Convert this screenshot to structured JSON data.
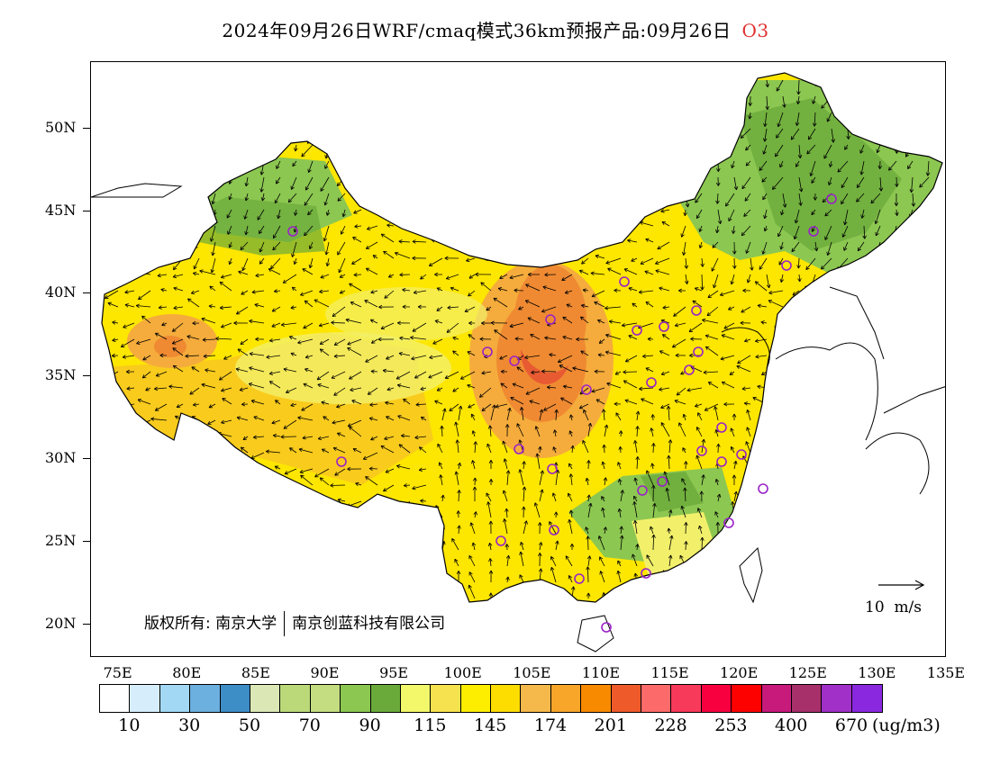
{
  "title": {
    "text": "2024年09月26日WRF/cmaq模式36km预报产品:09月26日",
    "species": "O3"
  },
  "map": {
    "lat_labels": [
      "50N",
      "45N",
      "40N",
      "35N",
      "30N",
      "25N",
      "20N"
    ],
    "lat_values": [
      50,
      45,
      40,
      35,
      30,
      25,
      20
    ],
    "lon_labels": [
      "75E",
      "80E",
      "85E",
      "90E",
      "95E",
      "100E",
      "105E",
      "110E",
      "115E",
      "120E",
      "125E",
      "130E",
      "135E"
    ],
    "lon_values": [
      75,
      80,
      85,
      90,
      95,
      100,
      105,
      110,
      115,
      120,
      125,
      130,
      135
    ],
    "extent": {
      "lon_min": 73,
      "lon_max": 135,
      "lat_min": 18,
      "lat_max": 54
    },
    "copyright": {
      "part1": "版权所有: 南京大学",
      "part2": "南京创蓝科技有限公司"
    },
    "wind_legend": "10  m/s",
    "fill_colors": {
      "green_dark": "#6aaa3a",
      "green_mid": "#8cc751",
      "green_light": "#bcd97a",
      "yellow_light": "#f2f06a",
      "yellow": "#fde600",
      "yellow_orange": "#f8c820",
      "orange_light": "#f5ac3c",
      "orange": "#ef8a32",
      "red_orange": "#e85a32"
    },
    "station_color": "#9a22c8"
  },
  "colorbar": {
    "colors": [
      "#ffffff",
      "#d6eefb",
      "#a3d8f4",
      "#6bb0df",
      "#3d8dc7",
      "#dbe8b6",
      "#bcd97a",
      "#c3dd80",
      "#8cc751",
      "#6aaa3a",
      "#f2f86a",
      "#f5e24e",
      "#fdee00",
      "#fddc00",
      "#f5b84a",
      "#f7a62a",
      "#f88a00",
      "#ef5a2a",
      "#fd6a6a",
      "#f83a5a",
      "#f8003f",
      "#fd0000",
      "#c81a7a",
      "#a8306a",
      "#a030c8",
      "#8a28e0"
    ],
    "labels": [
      "10",
      "30",
      "50",
      "70",
      "90",
      "115",
      "145",
      "174",
      "201",
      "228",
      "253",
      "400",
      "670"
    ],
    "units": "(ug/m3)"
  }
}
